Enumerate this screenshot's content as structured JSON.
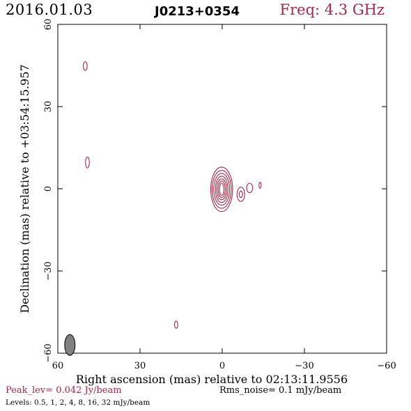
{
  "header": {
    "date": "2016.01.03",
    "source": "J0213+0354",
    "freq": "Freq: 4.3 GHz"
  },
  "footer": {
    "peak": "Peak_lev=  0.042 Jy/beam",
    "rms": "Rms_noise=   0.1 mJy/beam",
    "levels": "Levels: 0.5,    1,    2,    4,    8,   16,   32 mJy/beam"
  },
  "colors": {
    "contour": "#a52a4a",
    "beam": "#808080",
    "axis": "#000000"
  },
  "chart_data": {
    "type": "contour",
    "xlabel": "Right ascension (mas) relative to 02:13:11.9556",
    "ylabel": "Declination (mas) relative to +03:54:15.957",
    "xlim": [
      60,
      -60
    ],
    "ylim": [
      -60,
      60
    ],
    "xticks": [
      60,
      30,
      0,
      -30,
      -60
    ],
    "yticks": [
      -60,
      -30,
      0,
      30,
      60
    ],
    "xtick_labels": [
      "60",
      "30",
      "0",
      "−30",
      "−60"
    ],
    "ytick_labels": [
      "−60",
      "−30",
      "0",
      "30",
      "60"
    ],
    "contour_levels_mJy": [
      0.5,
      1,
      2,
      4,
      8,
      16,
      32
    ],
    "components": [
      {
        "x": 0.2,
        "y": -0.2,
        "rx": [
          0.8,
          1.3,
          1.8,
          2.3,
          2.9,
          3.5,
          4.0
        ],
        "ry": [
          2.2,
          3.0,
          3.8,
          4.8,
          5.8,
          6.9,
          8.1
        ]
      },
      {
        "x": -6.8,
        "y": -2.0,
        "rx": [
          0.6,
          1.4
        ],
        "ry": [
          1.2,
          2.6
        ]
      },
      {
        "x": -10.0,
        "y": 0.3,
        "rx": [
          1.1
        ],
        "ry": [
          1.7
        ]
      },
      {
        "x": -13.8,
        "y": 1.3,
        "rx": [
          0.4
        ],
        "ry": [
          1.1
        ]
      },
      {
        "x": 50.0,
        "y": 44.8,
        "rx": [
          0.7
        ],
        "ry": [
          1.6
        ]
      },
      {
        "x": 49.2,
        "y": 9.6,
        "rx": [
          0.7
        ],
        "ry": [
          2.0
        ]
      },
      {
        "x": 16.8,
        "y": -49.6,
        "rx": [
          0.6
        ],
        "ry": [
          1.3
        ]
      }
    ],
    "beam": {
      "x": 55.6,
      "y": -57.0,
      "major": 3.8,
      "minor": 1.9,
      "pa": 0
    }
  }
}
